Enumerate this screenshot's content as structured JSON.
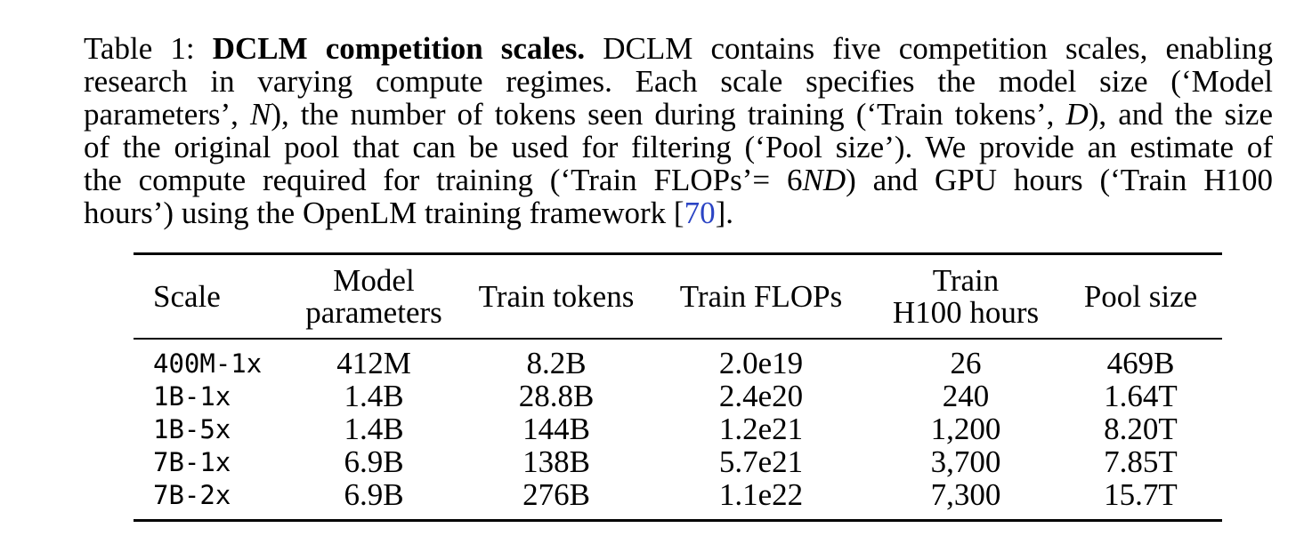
{
  "caption": {
    "label": "Table 1:",
    "title": "DCLM competition scales.",
    "line1_rest": "DCLM contains five competition scales, enabling",
    "line2": "research in varying compute regimes.  Each scale specifies the model size (‘Model",
    "line3_a": "parameters’,",
    "line3_N": "N",
    "line3_b": "), the number of tokens seen during training (‘Train tokens’,",
    "line3_D": "D",
    "line3_c": "), and the size",
    "line4": "of the original pool that can be used for filtering (‘Pool size’). We provide an estimate of",
    "line5_a": "the compute required for training (‘Train FLOPs’= 6",
    "line5_ND": "ND",
    "line5_b": ") and GPU hours (‘Train H100",
    "line6_a": "hours’) using the OpenLM training framework [",
    "line6_cite": "70",
    "line6_b": "]."
  },
  "table": {
    "headers": [
      [
        "Scale"
      ],
      [
        "Model",
        "parameters"
      ],
      [
        "Train tokens"
      ],
      [
        "Train FLOPs"
      ],
      [
        "Train",
        "H100 hours"
      ],
      [
        "Pool size"
      ]
    ],
    "rows": [
      [
        "400M-1x",
        "412M",
        "8.2B",
        "2.0e19",
        "26",
        "469B"
      ],
      [
        "1B-1x",
        "1.4B",
        "28.8B",
        "2.4e20",
        "240",
        "1.64T"
      ],
      [
        "1B-5x",
        "1.4B",
        "144B",
        "1.2e21",
        "1,200",
        "8.20T"
      ],
      [
        "7B-1x",
        "6.9B",
        "138B",
        "5.7e21",
        "3,700",
        "7.85T"
      ],
      [
        "7B-2x",
        "6.9B",
        "276B",
        "1.1e22",
        "7,300",
        "15.7T"
      ]
    ]
  }
}
